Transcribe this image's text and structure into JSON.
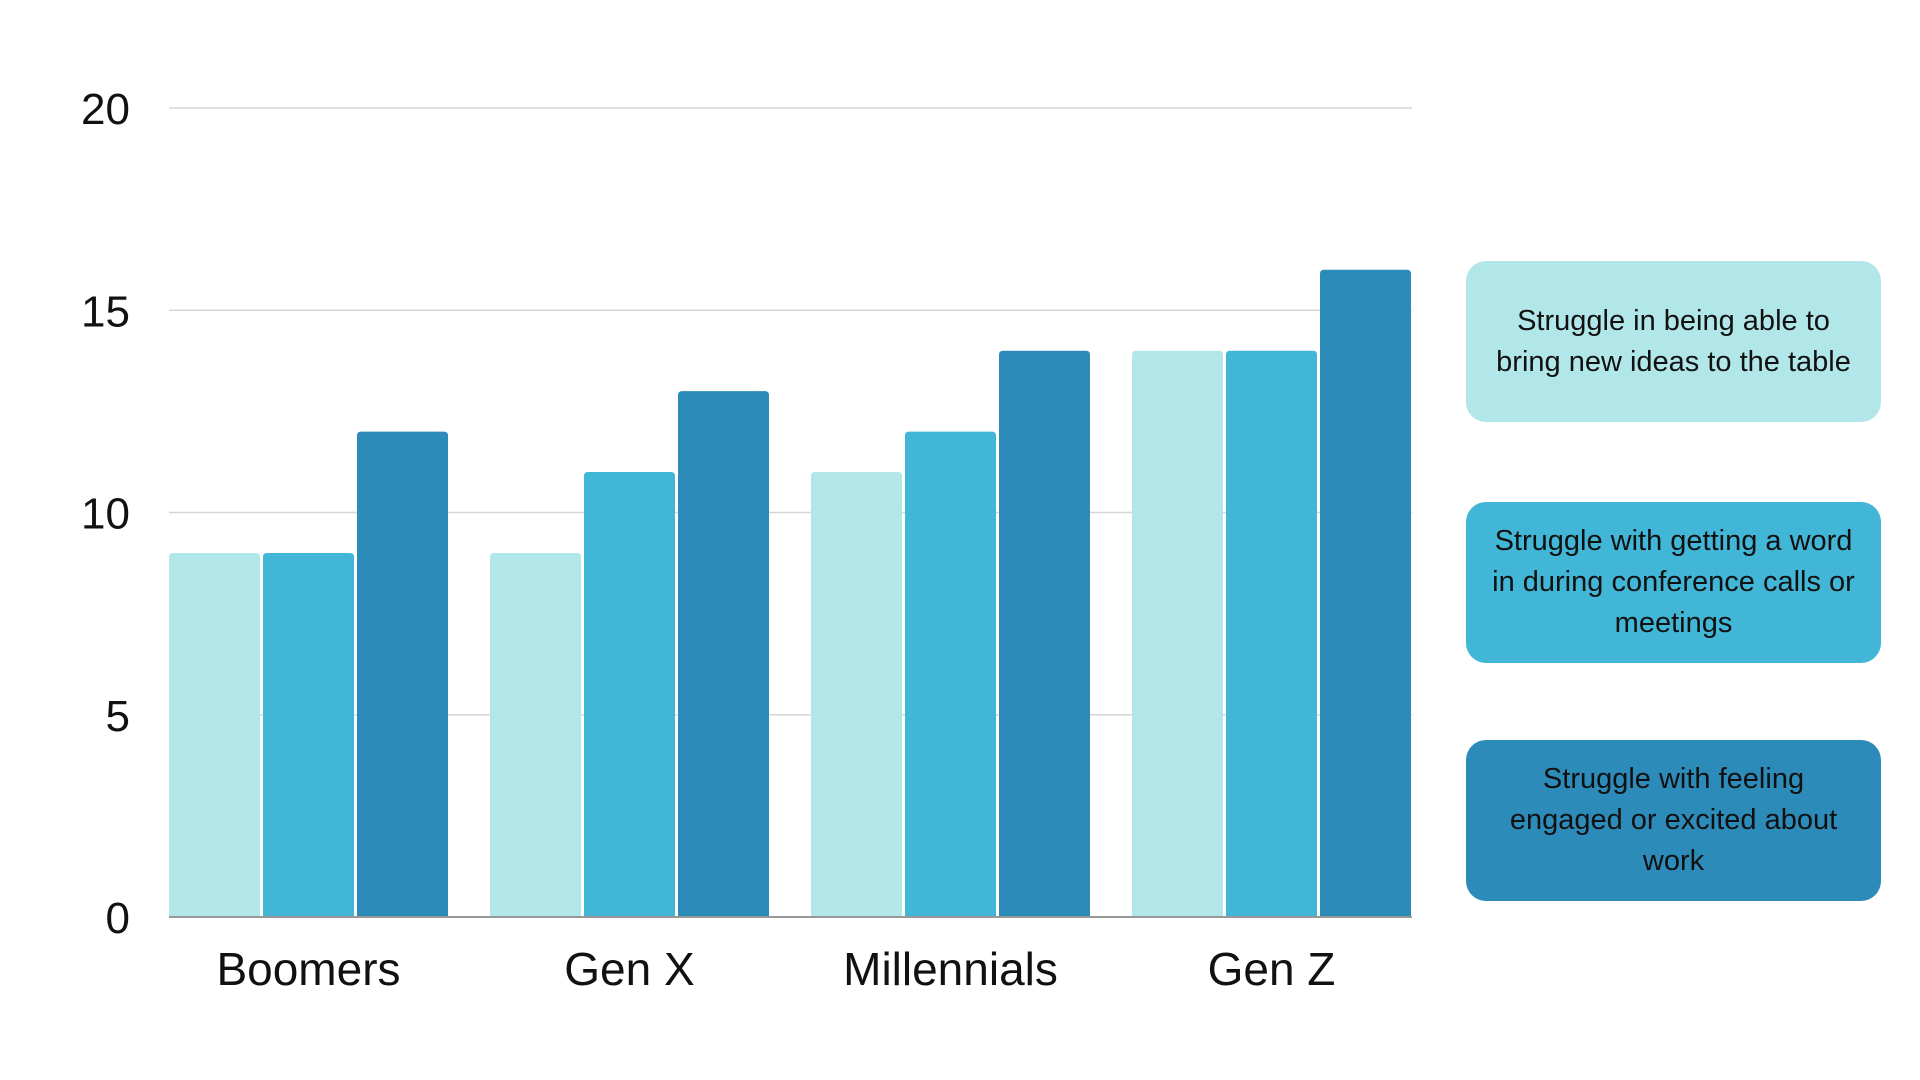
{
  "chart_data": {
    "type": "bar",
    "categories": [
      "Boomers",
      "Gen X",
      "Millennials",
      "Gen Z"
    ],
    "series": [
      {
        "name": "Struggle in being able to bring new ideas to the table",
        "color": "#b2e7ea",
        "values": [
          9,
          9,
          11,
          14
        ]
      },
      {
        "name": "Struggle with getting a word in during conference calls or meetings",
        "color": "#42b6d6",
        "values": [
          9,
          11,
          12,
          14
        ]
      },
      {
        "name": "Struggle with feeling engaged or excited about work",
        "color": "#2d8bba",
        "values": [
          12,
          13,
          14,
          16
        ]
      }
    ],
    "yticks": [
      "0",
      "5",
      "10",
      "15",
      "20"
    ],
    "ylim": [
      0,
      20
    ],
    "grid": true,
    "legend_placement": "right",
    "title": "",
    "xlabel": "",
    "ylabel": ""
  }
}
